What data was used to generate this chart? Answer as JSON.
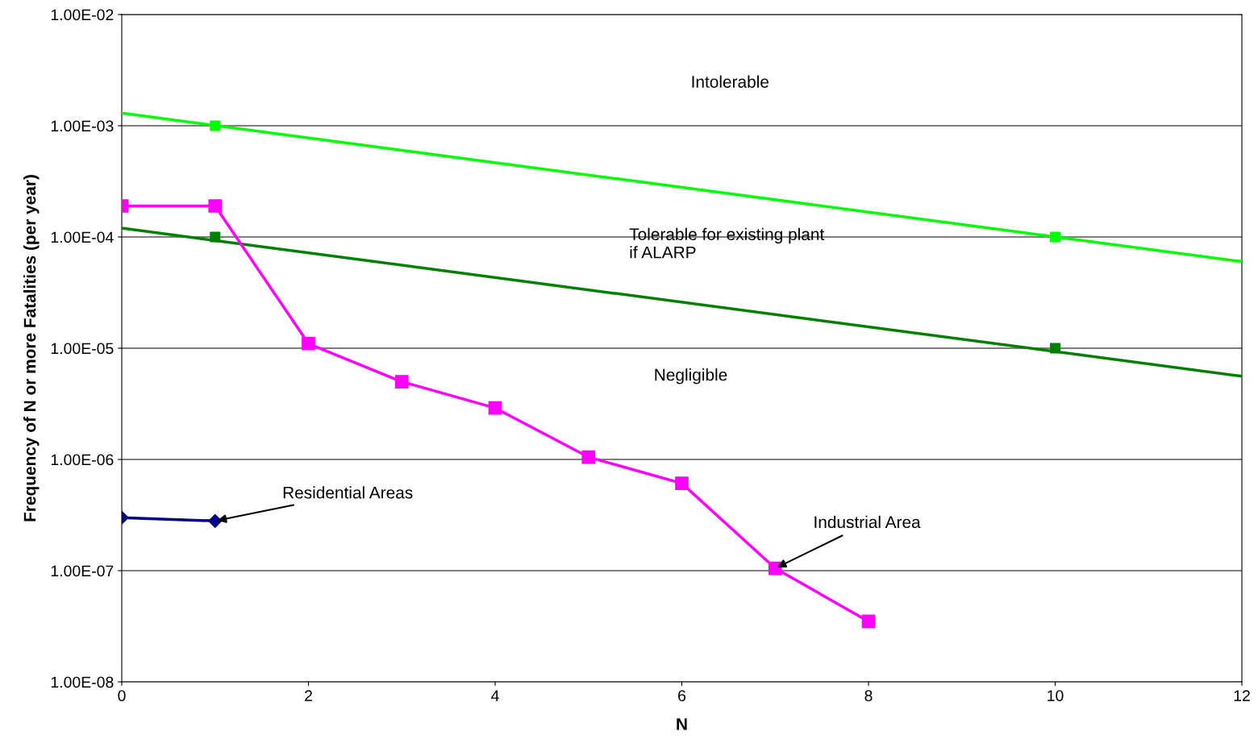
{
  "chart_data": {
    "type": "line",
    "xlabel": "N",
    "ylabel": "Frequency of N or more Fatalities (per year)",
    "log": "y",
    "grid": "y",
    "legend": false,
    "xlim": [
      0,
      12
    ],
    "xticks": [
      0,
      2,
      4,
      6,
      8,
      10,
      12
    ],
    "ylim": [
      1e-08,
      0.01
    ],
    "yticks": [
      {
        "value": 1e-08,
        "label": "1.00E-08"
      },
      {
        "value": 1e-07,
        "label": "1.00E-07"
      },
      {
        "value": 1e-06,
        "label": "1.00E-06"
      },
      {
        "value": 1e-05,
        "label": "1.00E-05"
      },
      {
        "value": 0.0001,
        "label": "1.00E-04"
      },
      {
        "value": 0.001,
        "label": "1.00E-03"
      },
      {
        "value": 0.01,
        "label": "1.00E-02"
      }
    ],
    "series": [
      {
        "color": "#00ff00",
        "x": [
          0,
          12
        ],
        "values": [
          0.0013,
          6e-05
        ],
        "marker": "none"
      },
      {
        "type": "scatter",
        "color": "#00ff00",
        "x": [
          1,
          10
        ],
        "values": [
          0.001,
          0.0001
        ],
        "marker": "square"
      },
      {
        "color": "#008000",
        "x": [
          0,
          12
        ],
        "values": [
          0.00012,
          5.6e-06
        ],
        "marker": "none"
      },
      {
        "type": "scatter",
        "color": "#008000",
        "x": [
          1,
          10
        ],
        "values": [
          0.0001,
          1e-05
        ],
        "marker": "square"
      },
      {
        "color": "#ff00ff",
        "x": [
          0,
          1,
          2,
          3,
          4,
          5,
          6,
          7,
          8
        ],
        "values": [
          0.00019,
          0.00019,
          1.1e-05,
          5e-06,
          2.9e-06,
          1.05e-06,
          6.1e-07,
          1.05e-07,
          3.5e-08
        ],
        "marker": "square"
      },
      {
        "color": "#000080",
        "x": [
          0,
          1
        ],
        "values": [
          3e-07,
          2.8e-07
        ],
        "marker": "diamond"
      }
    ],
    "annotations": [
      "Intolerable",
      "Tolerable for existing plant\nif ALARP",
      "Negligible",
      {
        "text": "Residential Areas",
        "x": 1,
        "y": 2.8e-07
      },
      {
        "text": "Industrial Area",
        "x": 7,
        "y": 1.05e-07
      }
    ]
  }
}
